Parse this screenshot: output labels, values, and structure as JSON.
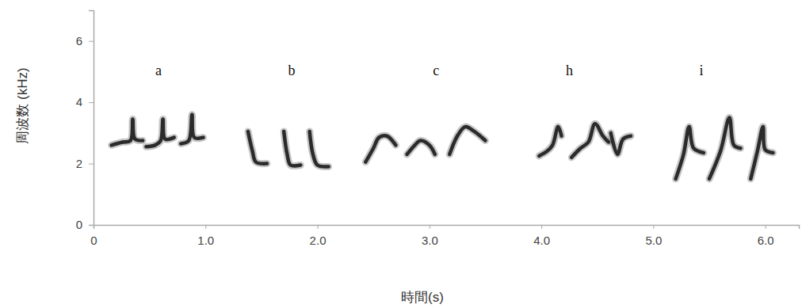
{
  "chart_data": {
    "type": "line",
    "xlabel": "時間(s)",
    "ylabel": "周波数 (kHz)",
    "color": "#1a1a1a",
    "xlim": [
      0,
      6.3
    ],
    "ylim": [
      0,
      7
    ],
    "xticks": [
      0,
      {
        "value": 1,
        "label": "1.0"
      },
      {
        "value": 2,
        "label": "2.0"
      },
      {
        "value": 3,
        "label": "3.0"
      },
      {
        "value": 4,
        "label": "4.0"
      },
      {
        "value": 5,
        "label": "5.0"
      },
      {
        "value": 6,
        "label": "6.0"
      }
    ],
    "yticks": [
      0,
      2,
      4,
      6
    ],
    "annotations": [
      {
        "text": "a",
        "x": 0.58,
        "y": 4.88
      },
      {
        "text": "b",
        "x": 1.77,
        "y": 4.88
      },
      {
        "text": "c",
        "x": 3.06,
        "y": 4.88
      },
      {
        "text": "h",
        "x": 4.25,
        "y": 4.88
      },
      {
        "text": "i",
        "x": 5.43,
        "y": 4.88
      }
    ],
    "series": [
      {
        "x": [
          0.16,
          0.26,
          0.33,
          0.35,
          0.37,
          0.44
        ],
        "values": [
          2.6,
          2.7,
          2.75,
          3.45,
          2.8,
          2.75
        ]
      },
      {
        "x": [
          0.47,
          0.55,
          0.6,
          0.62,
          0.64,
          0.72
        ],
        "values": [
          2.55,
          2.6,
          2.75,
          3.45,
          2.8,
          2.85
        ]
      },
      {
        "x": [
          0.78,
          0.85,
          0.88,
          0.9,
          0.98
        ],
        "values": [
          2.65,
          2.75,
          3.6,
          2.85,
          2.85
        ]
      },
      {
        "x": [
          1.38,
          1.42,
          1.45,
          1.55
        ],
        "values": [
          3.05,
          2.4,
          2.05,
          2.0
        ]
      },
      {
        "x": [
          1.7,
          1.73,
          1.76,
          1.85
        ],
        "values": [
          3.05,
          2.3,
          1.95,
          1.95
        ]
      },
      {
        "x": [
          1.93,
          1.96,
          2.0,
          2.1
        ],
        "values": [
          3.05,
          2.3,
          1.95,
          1.9
        ]
      },
      {
        "x": [
          2.43,
          2.5,
          2.55,
          2.62,
          2.7
        ],
        "values": [
          2.05,
          2.5,
          2.85,
          2.9,
          2.6
        ]
      },
      {
        "x": [
          2.8,
          2.87,
          2.92,
          3.0,
          3.05
        ],
        "values": [
          2.3,
          2.6,
          2.75,
          2.6,
          2.3
        ]
      },
      {
        "x": [
          3.18,
          3.25,
          3.32,
          3.4,
          3.5
        ],
        "values": [
          2.3,
          2.9,
          3.2,
          3.05,
          2.75
        ]
      },
      {
        "x": [
          3.98,
          4.05,
          4.1,
          4.15,
          4.18
        ],
        "values": [
          2.25,
          2.4,
          2.6,
          3.2,
          2.9
        ]
      },
      {
        "x": [
          4.27,
          4.35,
          4.42,
          4.48,
          4.55,
          4.6
        ],
        "values": [
          2.2,
          2.5,
          2.7,
          3.3,
          2.9,
          2.7
        ]
      },
      {
        "x": [
          4.62,
          4.68,
          4.73,
          4.8
        ],
        "values": [
          3.0,
          2.3,
          2.8,
          2.9
        ]
      },
      {
        "x": [
          5.2,
          5.27,
          5.32,
          5.36,
          5.45
        ],
        "values": [
          1.5,
          2.3,
          3.2,
          2.5,
          2.35
        ]
      },
      {
        "x": [
          5.5,
          5.6,
          5.68,
          5.72,
          5.78
        ],
        "values": [
          1.5,
          2.4,
          3.5,
          2.6,
          2.5
        ]
      },
      {
        "x": [
          5.87,
          5.93,
          5.98,
          6.0,
          6.07
        ],
        "values": [
          1.5,
          2.4,
          3.2,
          2.45,
          2.35
        ]
      }
    ]
  }
}
